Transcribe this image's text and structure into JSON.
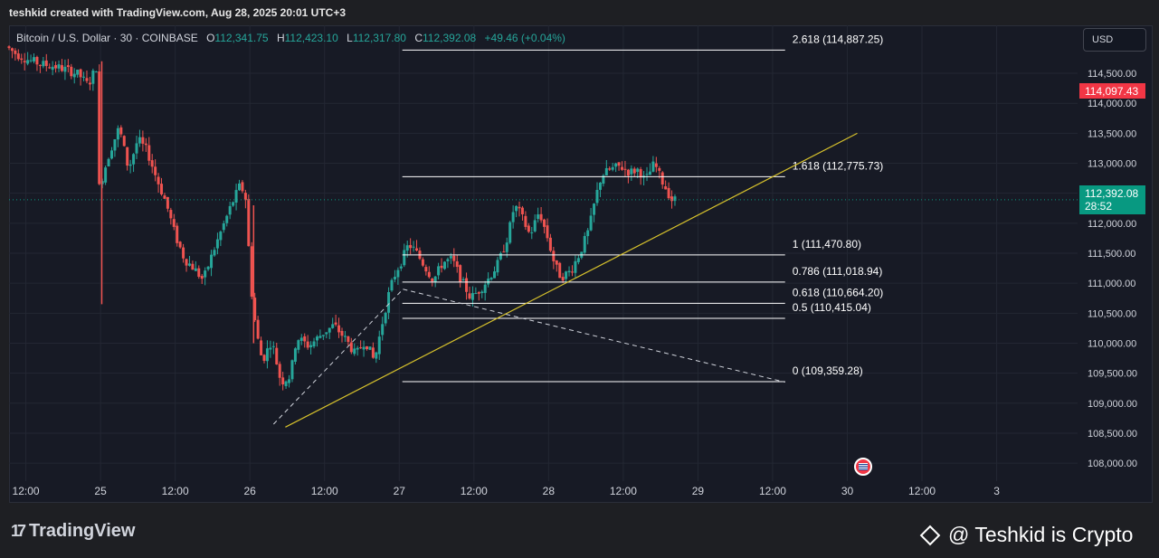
{
  "header": {
    "credit": "teshkid created with TradingView.com, Aug 28, 2025 20:01 UTC+3"
  },
  "legend": {
    "symbol": "Bitcoin / U.S. Dollar · 30 · COINBASE",
    "open_label": "O",
    "open": "112,341.75",
    "high_label": "H",
    "high": "112,423.10",
    "low_label": "L",
    "low": "112,317.80",
    "close_label": "C",
    "close": "112,392.08",
    "change": "+49.46 (+0.04%)"
  },
  "currency": "USD",
  "price_tags": {
    "marked": "114,097.43",
    "current": "112,392.08",
    "countdown": "28:52"
  },
  "colors": {
    "up": "#26a69a",
    "down": "#ef5350",
    "fib": "#ffffff",
    "trend": "#d6c12c",
    "bg": "#171a25"
  },
  "footer": {
    "brand": "TradingView",
    "watermark": "@ Teshkid is Crypto"
  },
  "chart_data": {
    "type": "candlestick",
    "timeframe": "30",
    "y_range": [
      107700,
      115300
    ],
    "y_ticks": [
      108000,
      108500,
      109000,
      109500,
      110000,
      110500,
      111000,
      111500,
      112000,
      112500,
      113000,
      113500,
      114000,
      114500
    ],
    "y_tick_labels": [
      "108,000.00",
      "108,500.00",
      "109,000.00",
      "109,500.00",
      "110,000.00",
      "110,500.00",
      "111,000.00",
      "111,500.00",
      "112,000.00",
      "112,500.00",
      "113,000.00",
      "113,500.00",
      "114,000.00",
      "114,500.00"
    ],
    "x_ticks": [
      {
        "label": "12:00",
        "t": 12
      },
      {
        "label": "25",
        "t": 24
      },
      {
        "label": "12:00",
        "t": 36
      },
      {
        "label": "26",
        "t": 48
      },
      {
        "label": "12:00",
        "t": 60
      },
      {
        "label": "27",
        "t": 72
      },
      {
        "label": "12:00",
        "t": 84
      },
      {
        "label": "28",
        "t": 96
      },
      {
        "label": "12:00",
        "t": 108
      },
      {
        "label": "29",
        "t": 120
      },
      {
        "label": "12:00",
        "t": 132
      },
      {
        "label": "30",
        "t": 144
      },
      {
        "label": "12:00",
        "t": 156
      },
      {
        "label": "3",
        "t": 168
      }
    ],
    "x_range": [
      9.3,
      181
    ],
    "price_path": [
      [
        9.3,
        114950
      ],
      [
        11,
        114820
      ],
      [
        13,
        114720
      ],
      [
        15,
        114650
      ],
      [
        17,
        114620
      ],
      [
        19,
        114560
      ],
      [
        21,
        114480
      ],
      [
        22.5,
        114300
      ],
      [
        24,
        114650
      ],
      [
        24.3,
        112600
      ],
      [
        26,
        113200
      ],
      [
        27.5,
        113600
      ],
      [
        29,
        112900
      ],
      [
        30.5,
        113400
      ],
      [
        32,
        113200
      ],
      [
        33.5,
        112750
      ],
      [
        35,
        112350
      ],
      [
        36.5,
        111800
      ],
      [
        38,
        111400
      ],
      [
        39.5,
        111250
      ],
      [
        41,
        111050
      ],
      [
        42.5,
        111500
      ],
      [
        44,
        111900
      ],
      [
        45.5,
        112300
      ],
      [
        47,
        112650
      ],
      [
        48,
        112350
      ],
      [
        48.5,
        111100
      ],
      [
        49.5,
        110200
      ],
      [
        50.5,
        109700
      ],
      [
        52,
        110050
      ],
      [
        53.5,
        109350
      ],
      [
        55,
        109450
      ],
      [
        56,
        110100
      ],
      [
        58,
        109950
      ],
      [
        60,
        110150
      ],
      [
        62,
        110300
      ],
      [
        64,
        110050
      ],
      [
        65.5,
        109800
      ],
      [
        67,
        110050
      ],
      [
        68.5,
        109700
      ],
      [
        70,
        110450
      ],
      [
        71,
        110900
      ],
      [
        72,
        111200
      ],
      [
        73,
        111400
      ],
      [
        74,
        111650
      ],
      [
        75,
        111550
      ],
      [
        76.5,
        111300
      ],
      [
        78,
        111050
      ],
      [
        79.5,
        111350
      ],
      [
        81,
        111400
      ],
      [
        82.5,
        111050
      ],
      [
        84,
        110750
      ],
      [
        85.5,
        110900
      ],
      [
        87,
        111100
      ],
      [
        88.5,
        111350
      ],
      [
        90,
        111800
      ],
      [
        91,
        112300
      ],
      [
        92,
        112150
      ],
      [
        93.5,
        111800
      ],
      [
        95,
        112200
      ],
      [
        96.5,
        111700
      ],
      [
        97.5,
        111300
      ],
      [
        98.5,
        111100
      ],
      [
        100,
        111200
      ],
      [
        101.5,
        111500
      ],
      [
        103,
        111900
      ],
      [
        104,
        112400
      ],
      [
        105,
        112800
      ],
      [
        106.5,
        112900
      ],
      [
        108,
        112950
      ],
      [
        109.5,
        112850
      ],
      [
        111,
        112900
      ],
      [
        112,
        112700
      ],
      [
        113.5,
        113000
      ],
      [
        114.5,
        112750
      ],
      [
        115.5,
        112550
      ],
      [
        116.3,
        112392
      ]
    ],
    "fib_levels": [
      {
        "label": "2.618 (114,887.25)",
        "price": 114887.25
      },
      {
        "label": "1.618 (112,775.73)",
        "price": 112775.73
      },
      {
        "label": "1 (111,470.80)",
        "price": 111470.8
      },
      {
        "label": "0.786 (111,018.94)",
        "price": 111018.94
      },
      {
        "label": "0.618 (110,664.20)",
        "price": 110664.2
      },
      {
        "label": "0.5 (110,415.04)",
        "price": 110415.04
      },
      {
        "label": "0 (109,359.28)",
        "price": 109359.28
      }
    ],
    "fib_range_t": [
      72.5,
      134
    ],
    "trendline": {
      "from": [
        53.7,
        108600
      ],
      "to": [
        145.6,
        113500
      ]
    },
    "dashed_legs": [
      {
        "from": [
          51.8,
          108650
        ],
        "to": [
          72.6,
          110900
        ]
      },
      {
        "from": [
          72.6,
          110900
        ],
        "to": [
          134,
          109350
        ]
      }
    ],
    "current_price": 112392.08,
    "marked_price": 114097.43
  }
}
